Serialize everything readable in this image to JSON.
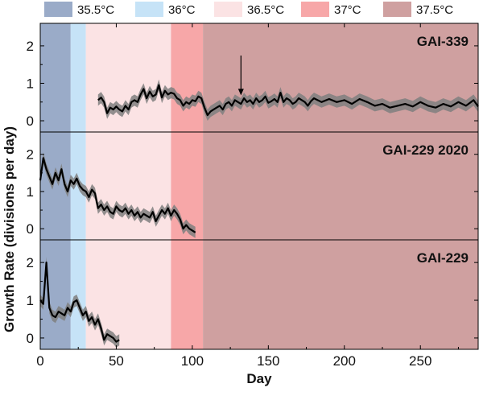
{
  "chart_data": {
    "type": "line",
    "xlabel": "Day",
    "ylabel": "Growth Rate (divisions per day)",
    "xlim": [
      0,
      288
    ],
    "ylim": [
      -0.3,
      2.6
    ],
    "x_ticks": [
      "0",
      "50",
      "100",
      "150",
      "200",
      "250"
    ],
    "x_tick_values": [
      0,
      50,
      100,
      150,
      200,
      250
    ],
    "y_ticks": [
      "0",
      "1",
      "2"
    ],
    "y_tick_values": [
      0,
      1,
      2
    ],
    "legend_position": "top",
    "temperature_bands": [
      {
        "label": "35.5°C",
        "start": 0,
        "end": 20,
        "color": "#9aabc8"
      },
      {
        "label": "36°C",
        "start": 20,
        "end": 30,
        "color": "#c6e3f7"
      },
      {
        "label": "36.5°C",
        "start": 30,
        "end": 86,
        "color": "#fbe3e4"
      },
      {
        "label": "37°C",
        "start": 86,
        "end": 107,
        "color": "#f7a7a8"
      },
      {
        "label": "37.5°C",
        "start": 107,
        "end": 288,
        "color": "#cfa0a0"
      }
    ],
    "panels": [
      {
        "name": "GAI-339",
        "annotation_arrow_x": 132,
        "x": [
          38,
          40,
          42,
          44,
          46,
          48,
          50,
          52,
          54,
          56,
          58,
          60,
          62,
          64,
          66,
          68,
          70,
          72,
          74,
          76,
          78,
          80,
          82,
          84,
          86,
          88,
          90,
          92,
          94,
          96,
          98,
          100,
          102,
          104,
          106,
          108,
          110,
          112,
          114,
          116,
          118,
          120,
          122,
          124,
          126,
          128,
          130,
          132,
          134,
          136,
          138,
          140,
          142,
          144,
          146,
          148,
          150,
          152,
          154,
          156,
          158,
          160,
          162,
          164,
          166,
          168,
          170,
          172,
          174,
          176,
          178,
          180,
          185,
          190,
          195,
          200,
          205,
          210,
          215,
          220,
          225,
          230,
          235,
          240,
          245,
          250,
          255,
          260,
          265,
          270,
          275,
          280,
          285,
          288
        ],
        "values": [
          0.55,
          0.62,
          0.5,
          0.2,
          0.35,
          0.3,
          0.38,
          0.3,
          0.25,
          0.4,
          0.3,
          0.5,
          0.55,
          0.5,
          0.7,
          0.85,
          0.6,
          0.78,
          0.65,
          0.7,
          0.95,
          0.62,
          0.8,
          0.7,
          0.75,
          0.72,
          0.6,
          0.55,
          0.4,
          0.5,
          0.45,
          0.55,
          0.52,
          0.65,
          0.6,
          0.35,
          0.15,
          0.25,
          0.3,
          0.35,
          0.4,
          0.3,
          0.45,
          0.5,
          0.4,
          0.55,
          0.5,
          0.45,
          0.6,
          0.5,
          0.55,
          0.45,
          0.6,
          0.5,
          0.55,
          0.65,
          0.48,
          0.52,
          0.58,
          0.5,
          0.75,
          0.5,
          0.6,
          0.55,
          0.45,
          0.5,
          0.6,
          0.55,
          0.5,
          0.4,
          0.52,
          0.6,
          0.5,
          0.58,
          0.5,
          0.55,
          0.45,
          0.58,
          0.5,
          0.4,
          0.45,
          0.35,
          0.4,
          0.45,
          0.38,
          0.5,
          0.4,
          0.35,
          0.45,
          0.38,
          0.5,
          0.4,
          0.55,
          0.38
        ],
        "band": 0.15
      },
      {
        "name": "GAI-229 2020",
        "x": [
          0,
          2,
          4,
          6,
          8,
          10,
          12,
          14,
          16,
          18,
          20,
          22,
          24,
          26,
          28,
          30,
          32,
          34,
          36,
          38,
          40,
          42,
          44,
          46,
          48,
          50,
          52,
          54,
          56,
          58,
          60,
          62,
          64,
          66,
          68,
          70,
          72,
          74,
          76,
          78,
          80,
          82,
          84,
          86,
          88,
          90,
          92,
          94,
          96,
          98,
          100,
          102
        ],
        "values": [
          1.3,
          1.9,
          1.6,
          1.4,
          1.2,
          1.5,
          1.3,
          1.6,
          1.2,
          1.0,
          1.3,
          1.2,
          1.35,
          1.15,
          1.05,
          1.0,
          0.85,
          1.05,
          0.95,
          0.55,
          0.65,
          0.5,
          0.6,
          0.45,
          0.4,
          0.6,
          0.5,
          0.45,
          0.55,
          0.4,
          0.5,
          0.35,
          0.45,
          0.3,
          0.4,
          0.35,
          0.3,
          0.45,
          0.2,
          0.35,
          0.5,
          0.4,
          0.55,
          0.35,
          0.5,
          0.4,
          0.25,
          0.0,
          0.1,
          0.0,
          -0.05,
          -0.1
        ],
        "band": 0.15
      },
      {
        "name": "GAI-229",
        "x": [
          0,
          2,
          4,
          6,
          8,
          10,
          12,
          14,
          16,
          18,
          20,
          22,
          24,
          26,
          28,
          30,
          32,
          34,
          36,
          38,
          40,
          42,
          44,
          46,
          48,
          50,
          52
        ],
        "values": [
          1.0,
          0.9,
          2.0,
          0.8,
          0.6,
          0.55,
          0.7,
          0.65,
          0.6,
          0.8,
          0.7,
          0.95,
          1.0,
          0.8,
          0.6,
          0.7,
          0.45,
          0.55,
          0.35,
          0.5,
          0.25,
          -0.05,
          0.1,
          0.05,
          0.0,
          -0.1,
          -0.05
        ],
        "band": 0.15
      }
    ]
  }
}
